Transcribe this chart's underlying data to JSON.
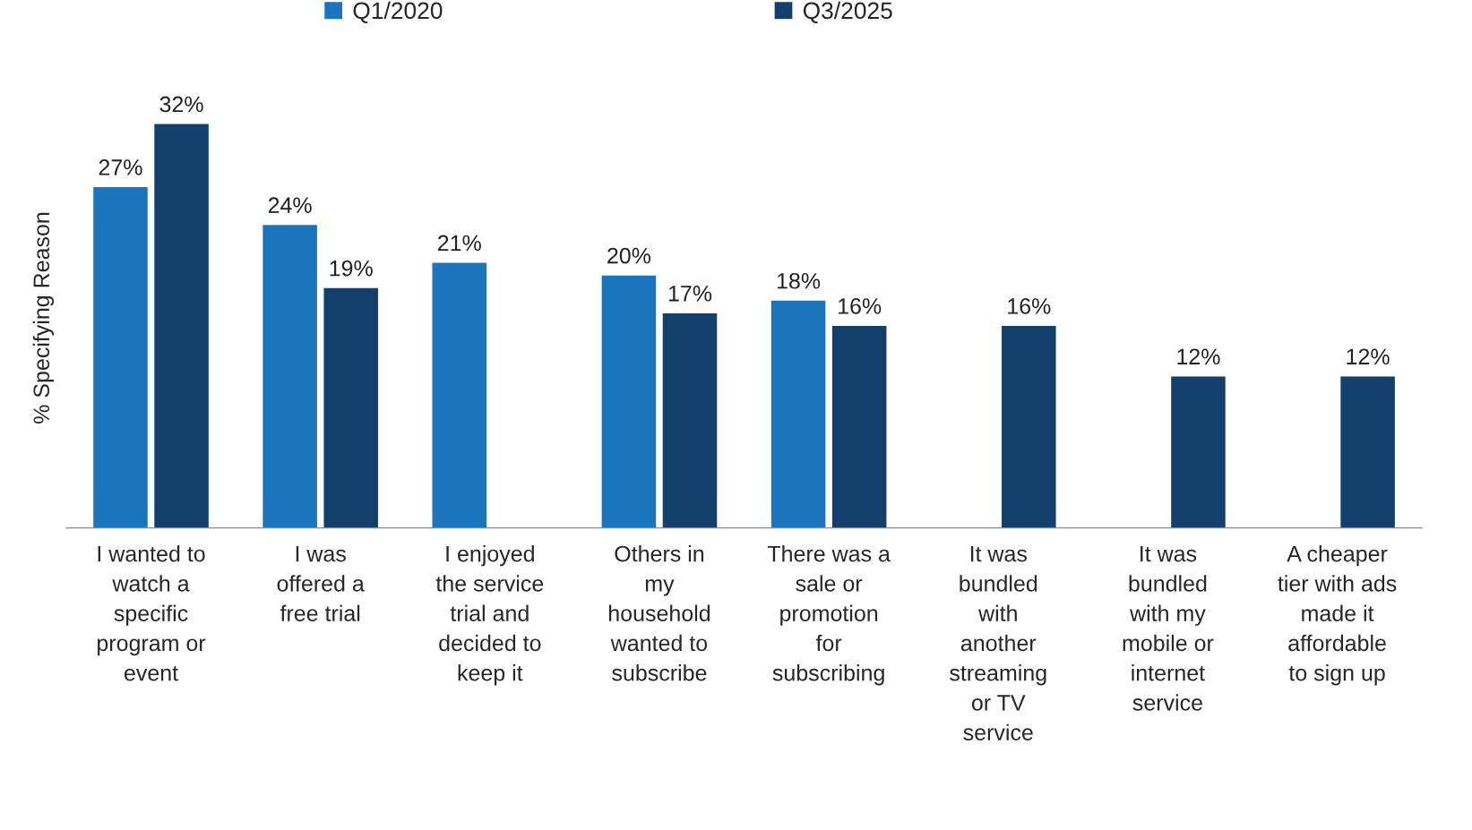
{
  "chart_data": {
    "type": "bar",
    "ylabel": "% Specifying Reason",
    "categories": [
      "I wanted to\nwatch a\nspecific\nprogram or\nevent",
      "I was\noffered a\nfree trial",
      "I enjoyed\nthe service\ntrial and\ndecided to\nkeep it",
      "Others in\nmy\nhousehold\nwanted to\nsubscribe",
      "There was a\nsale or\npromotion\nfor\nsubscribing",
      "It was\nbundled\nwith\nanother\nstreaming\nor TV\nservice",
      "It was\nbundled\nwith my\nmobile or\ninternet\nservice",
      "A cheaper\ntier with ads\nmade it\naffordable\nto sign up"
    ],
    "series": [
      {
        "name": "Q1/2020",
        "color": "#1b75bc",
        "values": [
          27,
          24,
          21,
          20,
          18,
          null,
          null,
          null
        ],
        "value_labels": [
          "27%",
          "24%",
          "21%",
          "20%",
          "18%",
          null,
          null,
          null
        ]
      },
      {
        "name": "Q3/2025",
        "color": "#123f6b",
        "values": [
          32,
          19,
          null,
          17,
          16,
          16,
          12,
          12
        ],
        "value_labels": [
          "32%",
          "19%",
          null,
          "17%",
          "16%",
          "16%",
          "12%",
          "12%"
        ]
      }
    ],
    "legend": "top",
    "tick_labels": "x",
    "grid": false
  }
}
